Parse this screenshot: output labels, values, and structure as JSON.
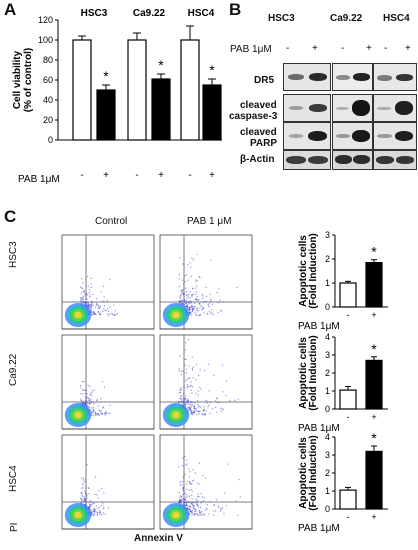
{
  "panelA": {
    "letter": "A",
    "ylabel_line1": "Cell viability",
    "ylabel_line2": "(% of control)",
    "yticks": [
      "0",
      "20",
      "40",
      "60",
      "80",
      "100",
      "120"
    ],
    "cell_lines": [
      "HSC3",
      "Ca9.22",
      "HSC4"
    ],
    "treatment_label": "PAB 1μM",
    "signs": [
      "-",
      "+",
      "-",
      "+",
      "-",
      "+"
    ],
    "significance": "*"
  },
  "panelB": {
    "letter": "B",
    "cell_lines": [
      "HSC3",
      "Ca9.22",
      "HSC4"
    ],
    "treatment_label": "PAB 1μM",
    "signs": [
      "-",
      "+",
      "-",
      "+",
      "-",
      "+"
    ],
    "rows": [
      {
        "label_lines": [
          "DR5"
        ]
      },
      {
        "label_lines": [
          "cleaved",
          "caspase-3"
        ]
      },
      {
        "label_lines": [
          "cleaved",
          "PARP"
        ]
      },
      {
        "label_lines": [
          "β-Actin"
        ]
      }
    ]
  },
  "panelC": {
    "letter": "C",
    "col_headers": [
      "Control",
      "PAB 1 μM"
    ],
    "row_labels": [
      "HSC3",
      "Ca9.22",
      "HSC4"
    ],
    "y_axis_label": "PI",
    "x_axis_label": "Annexin V",
    "bar_ylabel_line1": "Apoptotic cells",
    "bar_ylabel_line2": "(Fold Induction)",
    "treatment_label": "PAB 1μM",
    "signs": [
      "-",
      "+"
    ],
    "significance": "*"
  },
  "chart_data": [
    {
      "type": "bar",
      "title": "",
      "categories": [
        "HSC3 -",
        "HSC3 +",
        "Ca9.22 -",
        "Ca9.22 +",
        "HSC4 -",
        "HSC4 +"
      ],
      "values": [
        100,
        50,
        100,
        61,
        100,
        55
      ],
      "errors": [
        4,
        5,
        7,
        5,
        14,
        6
      ],
      "fill": [
        "#ffffff",
        "#000000",
        "#ffffff",
        "#000000",
        "#ffffff",
        "#000000"
      ],
      "ylabel": "Cell viability (% of control)",
      "ylim": [
        0,
        120
      ]
    },
    {
      "type": "bar",
      "title": "HSC3",
      "categories": [
        "-",
        "+"
      ],
      "values": [
        1.0,
        1.85
      ],
      "errors": [
        0.07,
        0.12
      ],
      "ylabel": "Apoptotic cells (Fold Induction)",
      "ylim": [
        0,
        3
      ],
      "yticks": [
        0,
        1,
        2,
        3
      ]
    },
    {
      "type": "bar",
      "title": "Ca9.22",
      "categories": [
        "-",
        "+"
      ],
      "values": [
        1.05,
        2.7
      ],
      "errors": [
        0.2,
        0.2
      ],
      "ylabel": "Apoptotic cells (Fold Induction)",
      "ylim": [
        0,
        4
      ],
      "yticks": [
        0,
        1,
        2,
        3,
        4
      ]
    },
    {
      "type": "bar",
      "title": "HSC4",
      "categories": [
        "-",
        "+"
      ],
      "values": [
        1.05,
        3.2
      ],
      "errors": [
        0.15,
        0.3
      ],
      "ylabel": "Apoptotic cells (Fold Induction)",
      "ylim": [
        0,
        4
      ],
      "yticks": [
        0,
        1,
        2,
        3,
        4
      ]
    }
  ]
}
